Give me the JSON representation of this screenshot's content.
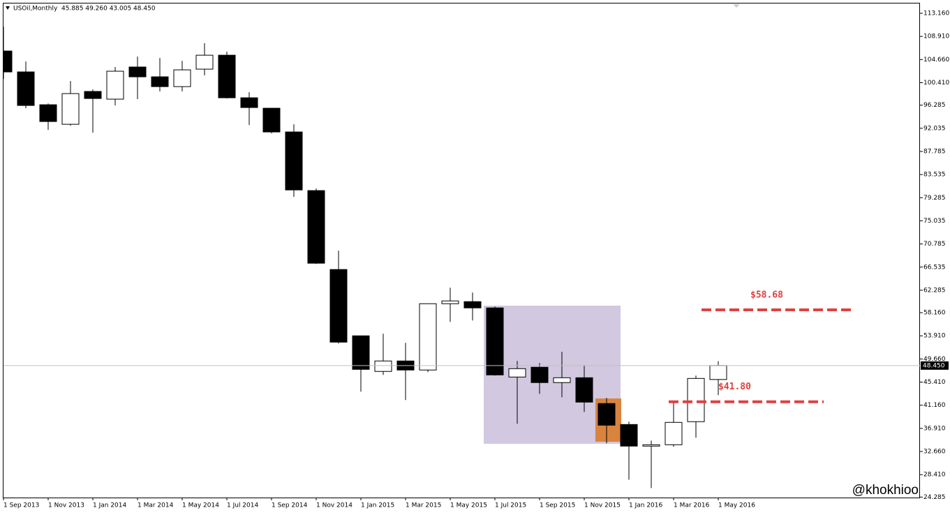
{
  "chart_data": {
    "type": "candlestick",
    "title": "USOil,Monthly",
    "info": "45.885 49.260 43.005 48.450",
    "categories": [
      "1 Sep 2013",
      null,
      "1 Nov 2013",
      null,
      "1 Jan 2014",
      null,
      "1 Mar 2014",
      null,
      "1 May 2014",
      null,
      "1 Jul 2014",
      null,
      "1 Sep 2014",
      null,
      "1 Nov 2014",
      null,
      "1 Jan 2015",
      null,
      "1 Mar 2015",
      null,
      "1 May 2015",
      null,
      "1 Jul 2015",
      null,
      "1 Sep 2015",
      null,
      "1 Nov 2015",
      null,
      "1 Jan 2016",
      null,
      "1 Mar 2016",
      null,
      "1 May 2016"
    ],
    "open": [
      106.23,
      102.39,
      96.36,
      92.77,
      98.8,
      97.39,
      103.29,
      101.49,
      99.69,
      102.9,
      105.46,
      97.64,
      95.72,
      91.36,
      80.59,
      66.09,
      53.91,
      47.37,
      49.29,
      47.63,
      59.81,
      60.19,
      59.04,
      46.34,
      48.14,
      45.32,
      46.21,
      41.47,
      37.62,
      33.65,
      33.9,
      38.14,
      45.885
    ],
    "high": [
      110.72,
      104.31,
      96.6,
      100.72,
      99.18,
      103.29,
      105.21,
      104.95,
      104.44,
      107.65,
      106.11,
      98.67,
      95.72,
      92.77,
      80.97,
      69.56,
      53.91,
      54.29,
      52.63,
      59.81,
      62.76,
      61.86,
      59.3,
      49.29,
      48.91,
      50.96,
      48.52,
      42.5,
      38.14,
      34.67,
      41.85,
      46.6,
      49.26
    ],
    "low": [
      101.1,
      95.72,
      91.74,
      92.51,
      91.23,
      96.23,
      97.39,
      98.8,
      98.8,
      101.75,
      97.51,
      92.64,
      91.1,
      79.43,
      67.12,
      52.5,
      43.65,
      46.73,
      42.11,
      47.24,
      56.47,
      56.73,
      46.6,
      37.75,
      43.26,
      42.62,
      39.93,
      34.16,
      27.49,
      25.95,
      33.52,
      35.19,
      43.005
    ],
    "close": [
      102.39,
      96.23,
      93.28,
      98.41,
      97.51,
      102.52,
      101.49,
      99.69,
      102.77,
      105.46,
      97.64,
      95.85,
      91.36,
      80.71,
      67.25,
      52.75,
      47.75,
      49.29,
      47.63,
      59.81,
      60.32,
      59.04,
      46.73,
      47.88,
      45.32,
      46.21,
      41.73,
      37.49,
      33.65,
      33.9,
      38.01,
      46.08,
      48.45
    ],
    "up_color": "#ffffff",
    "down_color": "#000000",
    "ylim": [
      24.2,
      114.96
    ],
    "yticks": [
      {
        "value": 113.16,
        "label": "113.160"
      },
      {
        "value": 108.91,
        "label": "108.910"
      },
      {
        "value": 104.66,
        "label": "104.660"
      },
      {
        "value": 100.41,
        "label": "100.410"
      },
      {
        "value": 96.285,
        "label": "96.285"
      },
      {
        "value": 92.035,
        "label": "92.035"
      },
      {
        "value": 87.785,
        "label": "87.785"
      },
      {
        "value": 83.535,
        "label": "83.535"
      },
      {
        "value": 79.285,
        "label": "79.285"
      },
      {
        "value": 75.035,
        "label": "75.035"
      },
      {
        "value": 70.785,
        "label": "70.785"
      },
      {
        "value": 66.535,
        "label": "66.535"
      },
      {
        "value": 62.285,
        "label": "62.285"
      },
      {
        "value": 58.16,
        "label": "58.160"
      },
      {
        "value": 53.91,
        "label": "53.910"
      },
      {
        "value": 49.66,
        "label": "49.660"
      },
      {
        "value": 45.41,
        "label": "45.410"
      },
      {
        "value": 41.16,
        "label": "41.160"
      },
      {
        "value": 36.91,
        "label": "36.910"
      },
      {
        "value": 32.66,
        "label": "32.660"
      },
      {
        "value": 28.41,
        "label": "28.410"
      },
      {
        "value": 24.285,
        "label": "24.285"
      }
    ],
    "current_price": {
      "value": 48.45,
      "label": "48.450"
    },
    "levels": [
      {
        "value": 58.68,
        "label": "$58.68",
        "color": "#e04040"
      },
      {
        "value": 41.8,
        "label": "$41.80",
        "color": "#e04040"
      }
    ],
    "watermark": "@khokhioo"
  }
}
